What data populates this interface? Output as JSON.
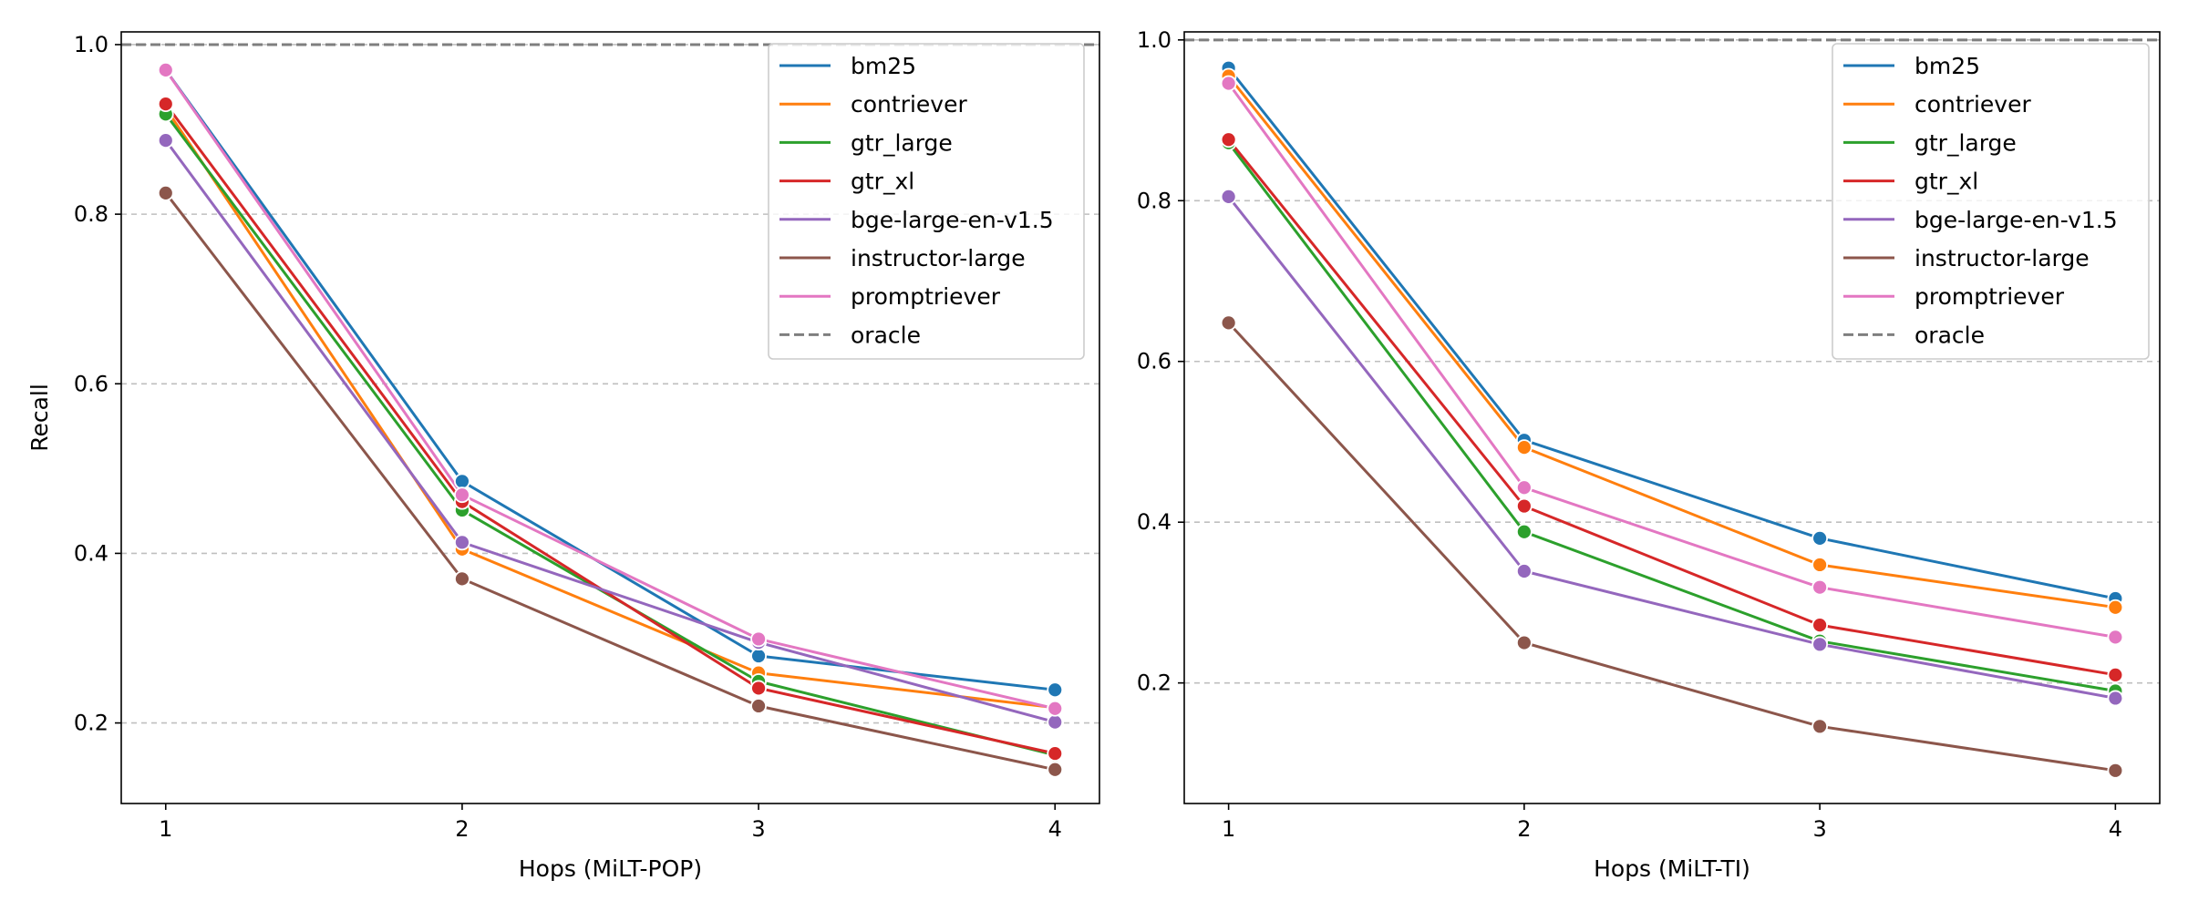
{
  "chart_data": [
    {
      "type": "line",
      "xlabel": "Hops (MiLT-POP)",
      "ylabel": "Recall",
      "x": [
        1,
        2,
        3,
        4
      ],
      "xlim": [
        0.85,
        4.15
      ],
      "ylim": [
        0.105,
        1.015
      ],
      "yticks": [
        0.2,
        0.4,
        0.6,
        0.8,
        1.0
      ],
      "ytick_labels": [
        "0.2",
        "0.4",
        "0.6",
        "0.8",
        "1.0"
      ],
      "xtick_labels": [
        "1",
        "2",
        "3",
        "4"
      ],
      "grid": "y, dashed",
      "legend_position": "upper right",
      "series": [
        {
          "name": "bm25",
          "color": "#1f77b4",
          "values": [
            0.97,
            0.485,
            0.279,
            0.239
          ]
        },
        {
          "name": "contriever",
          "color": "#ff7f0e",
          "values": [
            0.925,
            0.405,
            0.259,
            0.218
          ]
        },
        {
          "name": "gtr_large",
          "color": "#2ca02c",
          "values": [
            0.918,
            0.451,
            0.249,
            0.162
          ]
        },
        {
          "name": "gtr_xl",
          "color": "#d62728",
          "values": [
            0.93,
            0.461,
            0.241,
            0.164
          ]
        },
        {
          "name": "bge-large-en-v1.5",
          "color": "#9467bd",
          "values": [
            0.887,
            0.413,
            0.295,
            0.201
          ]
        },
        {
          "name": "instructor-large",
          "color": "#8c564b",
          "values": [
            0.825,
            0.37,
            0.22,
            0.145
          ]
        },
        {
          "name": "promptriever",
          "color": "#e377c2",
          "values": [
            0.97,
            0.469,
            0.299,
            0.217
          ]
        }
      ],
      "reference_line": {
        "name": "oracle",
        "value": 1.0,
        "color": "#7f7f7f",
        "style": "dashed"
      }
    },
    {
      "type": "line",
      "xlabel": "Hops (MiLT-TI)",
      "ylabel": "",
      "x": [
        1,
        2,
        3,
        4
      ],
      "xlim": [
        0.85,
        4.15
      ],
      "ylim": [
        0.05,
        1.01
      ],
      "yticks": [
        0.2,
        0.4,
        0.6,
        0.8,
        1.0
      ],
      "ytick_labels": [
        "0.2",
        "0.4",
        "0.6",
        "0.8",
        "1.0"
      ],
      "xtick_labels": [
        "1",
        "2",
        "3",
        "4"
      ],
      "grid": "y, dashed",
      "legend_position": "upper right",
      "series": [
        {
          "name": "bm25",
          "color": "#1f77b4",
          "values": [
            0.965,
            0.502,
            0.38,
            0.305
          ]
        },
        {
          "name": "contriever",
          "color": "#ff7f0e",
          "values": [
            0.955,
            0.493,
            0.347,
            0.294
          ]
        },
        {
          "name": "gtr_large",
          "color": "#2ca02c",
          "values": [
            0.872,
            0.388,
            0.252,
            0.19
          ]
        },
        {
          "name": "gtr_xl",
          "color": "#d62728",
          "values": [
            0.876,
            0.42,
            0.272,
            0.21
          ]
        },
        {
          "name": "bge-large-en-v1.5",
          "color": "#9467bd",
          "values": [
            0.805,
            0.339,
            0.248,
            0.181
          ]
        },
        {
          "name": "instructor-large",
          "color": "#8c564b",
          "values": [
            0.648,
            0.25,
            0.146,
            0.091
          ]
        },
        {
          "name": "promptriever",
          "color": "#e377c2",
          "values": [
            0.946,
            0.443,
            0.319,
            0.257
          ]
        }
      ],
      "reference_line": {
        "name": "oracle",
        "value": 1.0,
        "color": "#7f7f7f",
        "style": "dashed"
      }
    }
  ]
}
